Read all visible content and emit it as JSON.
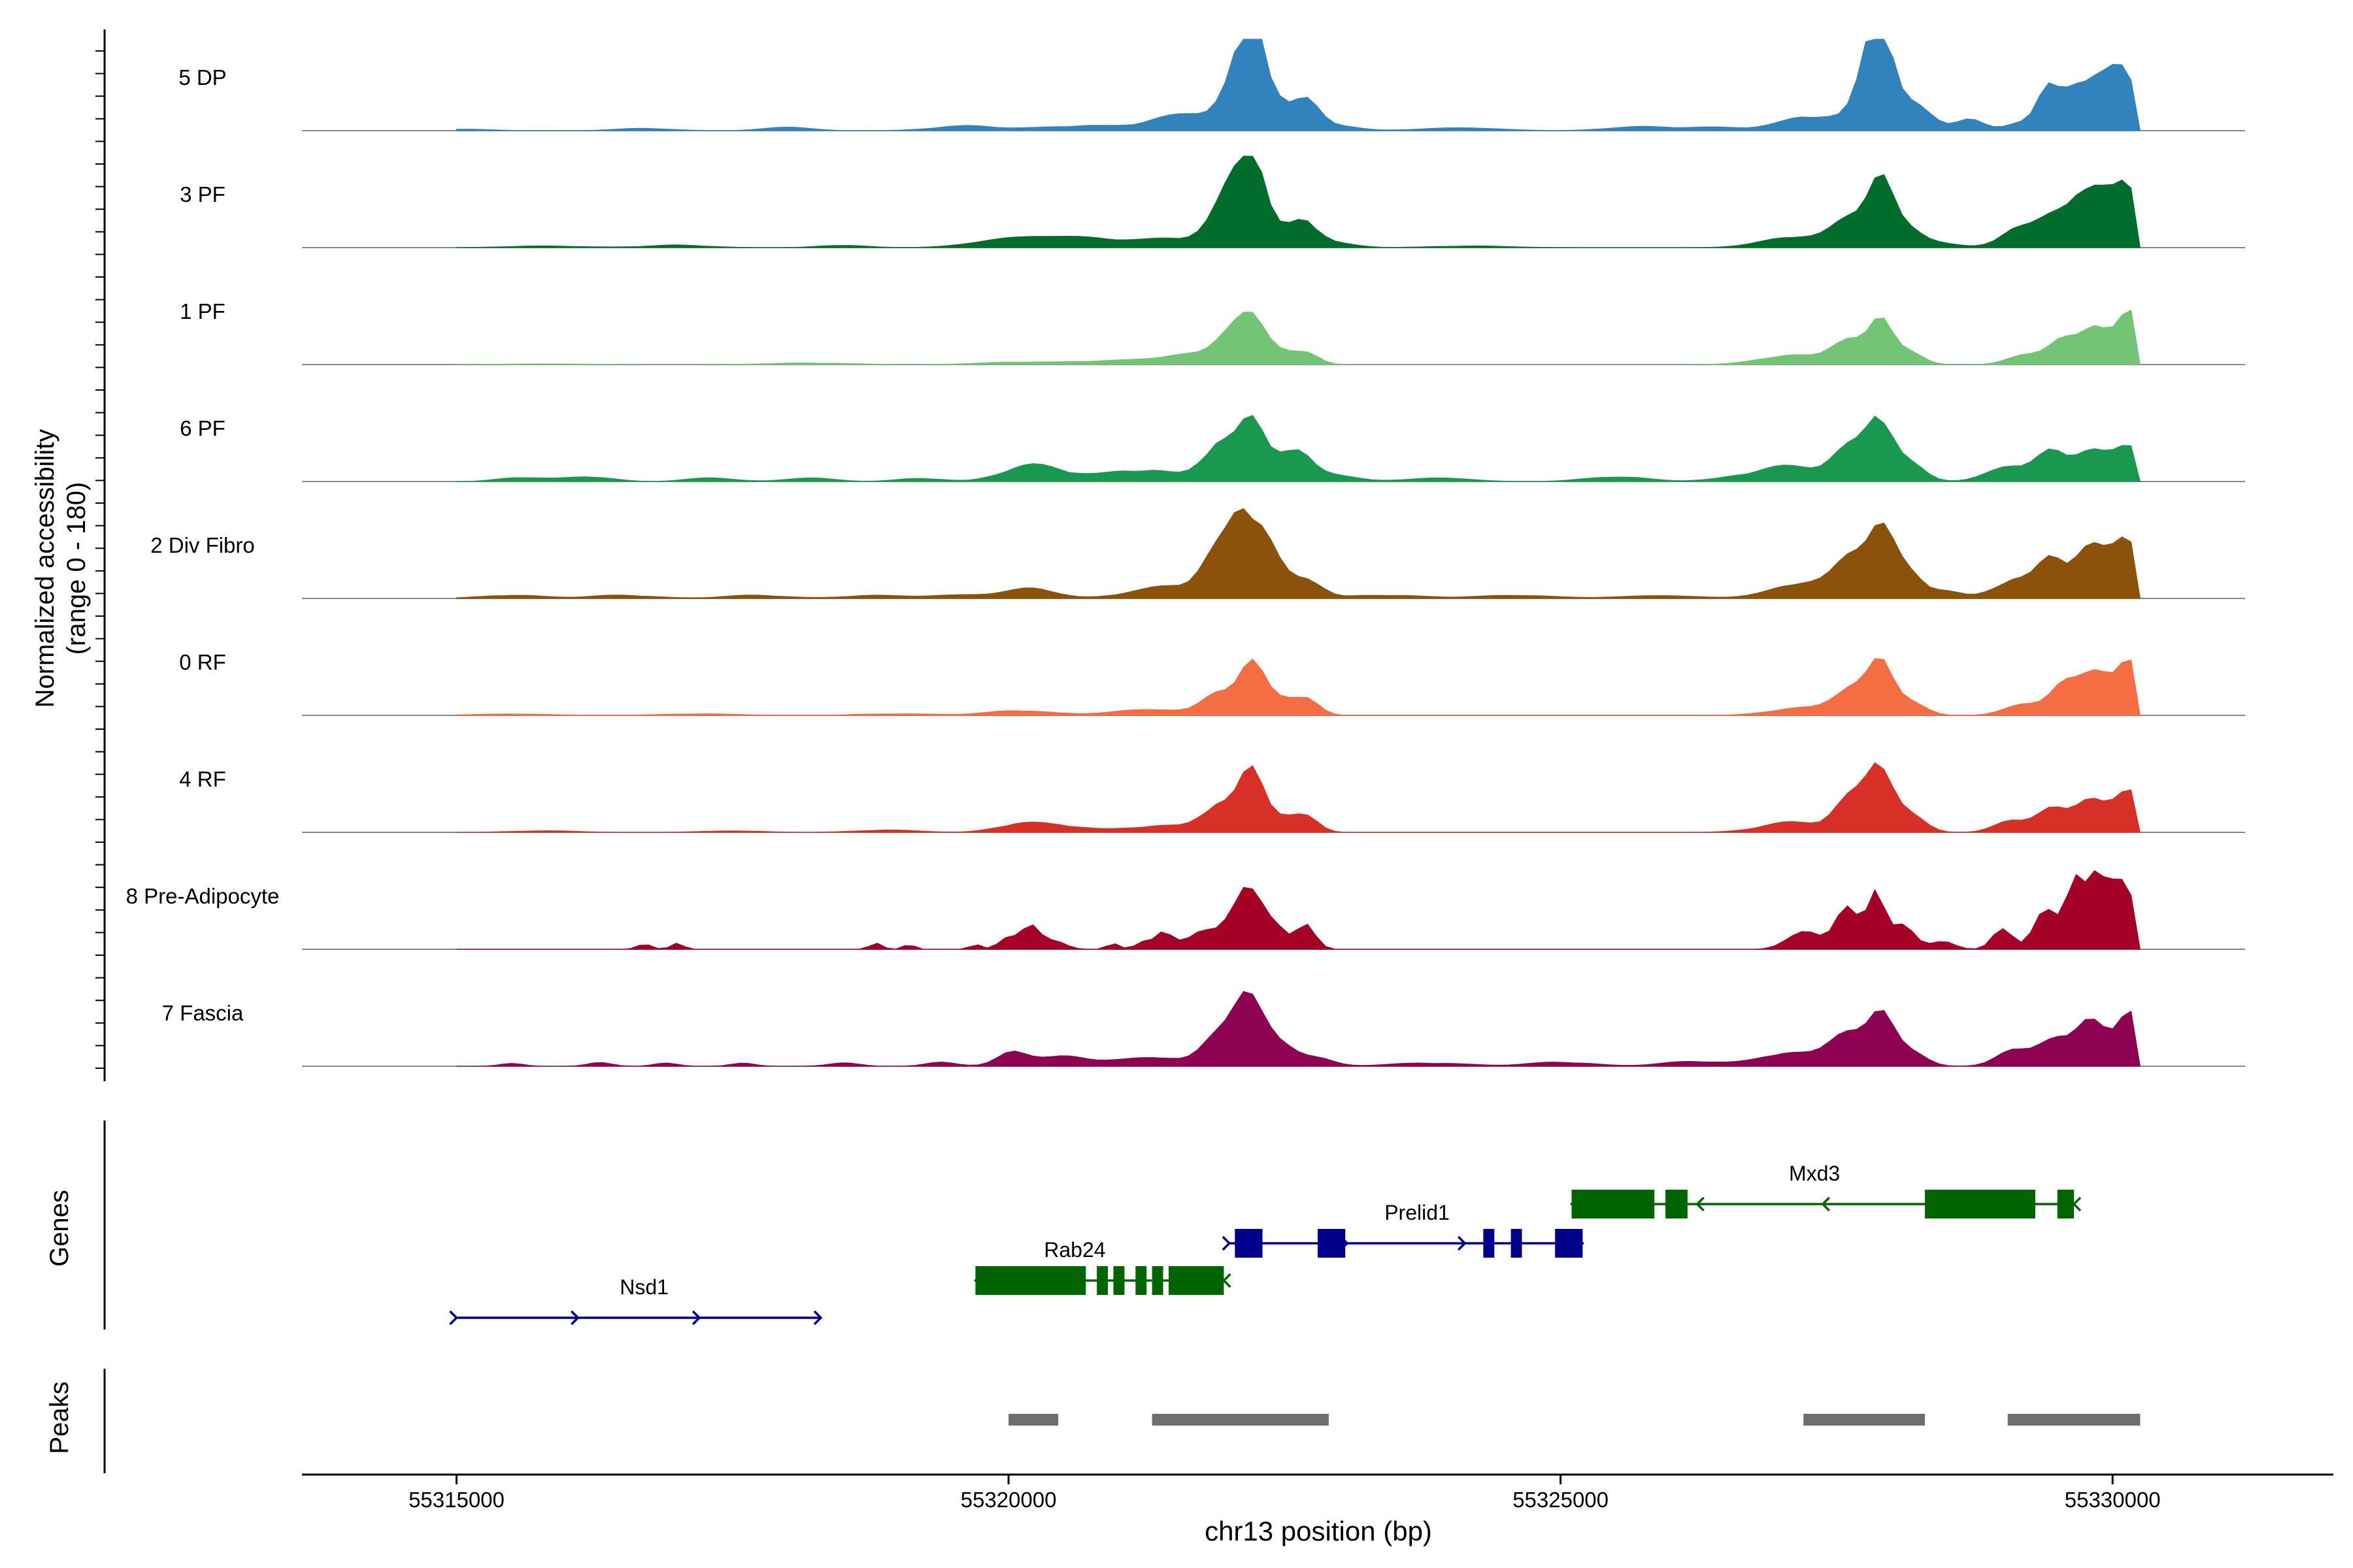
{
  "chart_data": {
    "type": "area",
    "title": "",
    "ylabel_line1": "Normalized accessibility",
    "ylabel_line2": "(range 0 - 180)",
    "xlabel": "chr13 position (bp)",
    "chromosome": "chr13",
    "yrange": [
      0,
      180
    ],
    "xlim": [
      55313600,
      55332000
    ],
    "x_ticks": [
      55315000,
      55320000,
      55325000,
      55330000
    ],
    "x_tick_labels": [
      "55315000",
      "55320000",
      "55325000",
      "55330000"
    ],
    "region": [
      55315000,
      55330250
    ],
    "tracks": [
      {
        "name": "5 DP",
        "color": "#3182bd",
        "peaks": [
          [
            55315000,
            0.02,
            400
          ],
          [
            55316700,
            0.03,
            350
          ],
          [
            55318000,
            0.05,
            300
          ],
          [
            55319600,
            0.06,
            400
          ],
          [
            55320700,
            0.06,
            600
          ],
          [
            55321400,
            0.08,
            300
          ],
          [
            55321900,
            0.22,
            450
          ],
          [
            55322130,
            0.62,
            200
          ],
          [
            55322230,
            0.66,
            150
          ],
          [
            55322400,
            0.28,
            200
          ],
          [
            55322700,
            0.3,
            160
          ],
          [
            55322900,
            0.08,
            300
          ],
          [
            55324100,
            0.04,
            500
          ],
          [
            55325700,
            0.05,
            400
          ],
          [
            55326400,
            0.04,
            400
          ],
          [
            55327300,
            0.18,
            400
          ],
          [
            55327800,
            0.62,
            180
          ],
          [
            55327900,
            0.92,
            140
          ],
          [
            55328100,
            0.28,
            250
          ],
          [
            55328300,
            0.1,
            200
          ],
          [
            55328700,
            0.14,
            180
          ],
          [
            55329200,
            0.12,
            200
          ],
          [
            55329400,
            0.36,
            120
          ],
          [
            55329600,
            0.42,
            200
          ],
          [
            55329850,
            0.56,
            200
          ],
          [
            55330100,
            0.72,
            180
          ]
        ]
      },
      {
        "name": "3 PF",
        "color": "#006d2c",
        "peaks": [
          [
            55315800,
            0.02,
            500
          ],
          [
            55317000,
            0.03,
            400
          ],
          [
            55318500,
            0.03,
            300
          ],
          [
            55320100,
            0.14,
            500
          ],
          [
            55320700,
            0.1,
            400
          ],
          [
            55321500,
            0.12,
            500
          ],
          [
            55321950,
            0.4,
            200
          ],
          [
            55322100,
            0.56,
            170
          ],
          [
            55322230,
            0.78,
            140
          ],
          [
            55322450,
            0.2,
            200
          ],
          [
            55322700,
            0.26,
            160
          ],
          [
            55322900,
            0.06,
            300
          ],
          [
            55324200,
            0.02,
            500
          ],
          [
            55327100,
            0.14,
            400
          ],
          [
            55327650,
            0.38,
            250
          ],
          [
            55327900,
            0.72,
            160
          ],
          [
            55328150,
            0.2,
            200
          ],
          [
            55328400,
            0.05,
            300
          ],
          [
            55329100,
            0.2,
            200
          ],
          [
            55329400,
            0.26,
            200
          ],
          [
            55329650,
            0.5,
            200
          ],
          [
            55329900,
            0.52,
            180
          ],
          [
            55330150,
            0.78,
            160
          ]
        ]
      },
      {
        "name": "1 PF",
        "color": "#74c476",
        "peaks": [
          [
            55315800,
            0.01,
            500
          ],
          [
            55318200,
            0.02,
            500
          ],
          [
            55320100,
            0.03,
            500
          ],
          [
            55321000,
            0.05,
            500
          ],
          [
            55321700,
            0.14,
            400
          ],
          [
            55322000,
            0.32,
            180
          ],
          [
            55322200,
            0.58,
            170
          ],
          [
            55322450,
            0.16,
            200
          ],
          [
            55322700,
            0.14,
            160
          ],
          [
            55327100,
            0.12,
            400
          ],
          [
            55327600,
            0.32,
            200
          ],
          [
            55327900,
            0.58,
            150
          ],
          [
            55328150,
            0.18,
            180
          ],
          [
            55329200,
            0.12,
            220
          ],
          [
            55329550,
            0.32,
            200
          ],
          [
            55329850,
            0.42,
            170
          ],
          [
            55330150,
            0.64,
            180
          ]
        ]
      },
      {
        "name": "6 PF",
        "color": "#1a9850",
        "peaks": [
          [
            55315600,
            0.05,
            300
          ],
          [
            55316200,
            0.06,
            300
          ],
          [
            55317300,
            0.05,
            300
          ],
          [
            55318200,
            0.05,
            300
          ],
          [
            55319200,
            0.04,
            300
          ],
          [
            55320100,
            0.14,
            300
          ],
          [
            55320400,
            0.11,
            300
          ],
          [
            55321200,
            0.14,
            500
          ],
          [
            55321900,
            0.44,
            200
          ],
          [
            55322200,
            0.68,
            170
          ],
          [
            55322450,
            0.26,
            200
          ],
          [
            55322650,
            0.22,
            160
          ],
          [
            55322900,
            0.1,
            300
          ],
          [
            55323900,
            0.05,
            400
          ],
          [
            55325500,
            0.06,
            400
          ],
          [
            55326700,
            0.05,
            400
          ],
          [
            55327100,
            0.16,
            400
          ],
          [
            55327650,
            0.4,
            250
          ],
          [
            55327900,
            0.66,
            150
          ],
          [
            55328150,
            0.22,
            200
          ],
          [
            55329100,
            0.2,
            300
          ],
          [
            55329450,
            0.34,
            180
          ],
          [
            55329800,
            0.42,
            200
          ],
          [
            55330150,
            0.48,
            200
          ]
        ]
      },
      {
        "name": "2 Div Fibro",
        "color": "#8c510a",
        "peaks": [
          [
            55315500,
            0.04,
            400
          ],
          [
            55316500,
            0.04,
            400
          ],
          [
            55317700,
            0.04,
            400
          ],
          [
            55318800,
            0.04,
            400
          ],
          [
            55319600,
            0.05,
            400
          ],
          [
            55320200,
            0.14,
            300
          ],
          [
            55321500,
            0.16,
            500
          ],
          [
            55321900,
            0.48,
            200
          ],
          [
            55322120,
            0.78,
            160
          ],
          [
            55322300,
            0.58,
            170
          ],
          [
            55322500,
            0.2,
            200
          ],
          [
            55322750,
            0.18,
            160
          ],
          [
            55323400,
            0.04,
            500
          ],
          [
            55324600,
            0.04,
            500
          ],
          [
            55325900,
            0.04,
            500
          ],
          [
            55327200,
            0.2,
            400
          ],
          [
            55327650,
            0.48,
            220
          ],
          [
            55327900,
            0.72,
            170
          ],
          [
            55328150,
            0.3,
            200
          ],
          [
            55328500,
            0.08,
            200
          ],
          [
            55329100,
            0.22,
            250
          ],
          [
            55329450,
            0.44,
            180
          ],
          [
            55329800,
            0.6,
            220
          ],
          [
            55330150,
            0.74,
            180
          ]
        ]
      },
      {
        "name": "0 RF",
        "color": "#f46d43",
        "peaks": [
          [
            55315500,
            0.02,
            500
          ],
          [
            55317200,
            0.02,
            500
          ],
          [
            55319000,
            0.02,
            500
          ],
          [
            55320100,
            0.06,
            400
          ],
          [
            55321300,
            0.08,
            500
          ],
          [
            55321900,
            0.3,
            200
          ],
          [
            55322200,
            0.68,
            160
          ],
          [
            55322450,
            0.2,
            200
          ],
          [
            55322700,
            0.2,
            160
          ],
          [
            55327200,
            0.1,
            400
          ],
          [
            55327650,
            0.36,
            220
          ],
          [
            55327900,
            0.66,
            150
          ],
          [
            55328150,
            0.2,
            200
          ],
          [
            55329200,
            0.14,
            250
          ],
          [
            55329550,
            0.36,
            180
          ],
          [
            55329850,
            0.5,
            200
          ],
          [
            55330150,
            0.62,
            180
          ]
        ]
      },
      {
        "name": "4 RF",
        "color": "#d73027",
        "peaks": [
          [
            55315800,
            0.02,
            400
          ],
          [
            55317500,
            0.02,
            400
          ],
          [
            55318900,
            0.03,
            400
          ],
          [
            55320100,
            0.1,
            300
          ],
          [
            55320500,
            0.07,
            300
          ],
          [
            55321400,
            0.08,
            500
          ],
          [
            55321900,
            0.32,
            200
          ],
          [
            55322200,
            0.72,
            160
          ],
          [
            55322450,
            0.18,
            200
          ],
          [
            55322700,
            0.18,
            160
          ],
          [
            55327100,
            0.12,
            400
          ],
          [
            55327650,
            0.42,
            220
          ],
          [
            55327900,
            0.74,
            150
          ],
          [
            55328150,
            0.22,
            200
          ],
          [
            55329100,
            0.16,
            220
          ],
          [
            55329450,
            0.3,
            180
          ],
          [
            55329800,
            0.46,
            200
          ],
          [
            55330150,
            0.58,
            180
          ]
        ]
      },
      {
        "name": "8 Pre-Adipocyte",
        "color": "#a50026",
        "peaks": [
          [
            55316700,
            0.07,
            90
          ],
          [
            55317000,
            0.07,
            80
          ],
          [
            55318800,
            0.08,
            80
          ],
          [
            55319100,
            0.07,
            70
          ],
          [
            55319700,
            0.07,
            70
          ],
          [
            55320000,
            0.16,
            120
          ],
          [
            55320200,
            0.3,
            110
          ],
          [
            55320400,
            0.12,
            150
          ],
          [
            55320950,
            0.08,
            80
          ],
          [
            55321200,
            0.08,
            80
          ],
          [
            55321400,
            0.2,
            120
          ],
          [
            55321750,
            0.22,
            200
          ],
          [
            55322050,
            0.34,
            150
          ],
          [
            55322200,
            0.68,
            130
          ],
          [
            55322400,
            0.28,
            150
          ],
          [
            55322700,
            0.3,
            120
          ],
          [
            55327200,
            0.24,
            200
          ],
          [
            55327600,
            0.52,
            150
          ],
          [
            55327850,
            0.7,
            110
          ],
          [
            55328100,
            0.28,
            150
          ],
          [
            55328450,
            0.1,
            150
          ],
          [
            55329000,
            0.28,
            120
          ],
          [
            55329400,
            0.46,
            150
          ],
          [
            55329650,
            0.88,
            110
          ],
          [
            55329850,
            0.82,
            120
          ],
          [
            55330050,
            0.74,
            120
          ],
          [
            55330200,
            0.48,
            110
          ]
        ]
      },
      {
        "name": "7 Fascia",
        "color": "#8e0152",
        "peaks": [
          [
            55315500,
            0.04,
            150
          ],
          [
            55316300,
            0.05,
            150
          ],
          [
            55316900,
            0.04,
            150
          ],
          [
            55317600,
            0.04,
            150
          ],
          [
            55318500,
            0.04,
            200
          ],
          [
            55319400,
            0.05,
            200
          ],
          [
            55320050,
            0.18,
            200
          ],
          [
            55320500,
            0.12,
            300
          ],
          [
            55321300,
            0.12,
            500
          ],
          [
            55321900,
            0.4,
            200
          ],
          [
            55322150,
            0.86,
            170
          ],
          [
            55322350,
            0.3,
            160
          ],
          [
            55322550,
            0.18,
            160
          ],
          [
            55322800,
            0.1,
            200
          ],
          [
            55323800,
            0.04,
            500
          ],
          [
            55325000,
            0.05,
            400
          ],
          [
            55326200,
            0.06,
            400
          ],
          [
            55327100,
            0.18,
            400
          ],
          [
            55327600,
            0.44,
            220
          ],
          [
            55327900,
            0.68,
            160
          ],
          [
            55328150,
            0.22,
            200
          ],
          [
            55329100,
            0.2,
            220
          ],
          [
            55329450,
            0.34,
            180
          ],
          [
            55329800,
            0.54,
            200
          ],
          [
            55330150,
            0.64,
            180
          ]
        ]
      }
    ],
    "genes_label": "Genes",
    "genes": [
      {
        "name": "Nsd1",
        "strand": "+",
        "row": 3,
        "color": "#00008b",
        "start": 55315000,
        "end": 55318300,
        "exons": [],
        "label_x": 55316700
      },
      {
        "name": "Rab24",
        "strand": "-",
        "row": 2,
        "color": "#006400",
        "start": 55319700,
        "end": 55321950,
        "exons": [
          [
            55319700,
            55320700
          ],
          [
            55320800,
            55320900
          ],
          [
            55320950,
            55321050
          ],
          [
            55321150,
            55321250
          ],
          [
            55321300,
            55321400
          ],
          [
            55321450,
            55321550
          ],
          [
            55321500,
            55321950
          ]
        ],
        "label_x": 55320600
      },
      {
        "name": "Prelid1",
        "strand": "+",
        "row": 1,
        "color": "#00008b",
        "start": 55322000,
        "end": 55325200,
        "exons": [
          [
            55322050,
            55322300
          ],
          [
            55322800,
            55323050
          ],
          [
            55324300,
            55324400
          ],
          [
            55324550,
            55324650
          ],
          [
            55324950,
            55325200
          ]
        ],
        "label_x": 55323700
      },
      {
        "name": "Mxd3",
        "strand": "-",
        "row": 0,
        "color": "#006400",
        "start": 55325100,
        "end": 55329650,
        "exons": [
          [
            55325100,
            55325850
          ],
          [
            55325950,
            55326150
          ],
          [
            55328300,
            55329300
          ],
          [
            55329500,
            55329650
          ]
        ],
        "label_x": 55327300
      }
    ],
    "peaks_label": "Peaks",
    "peak_regions": [
      [
        55320000,
        55320450
      ],
      [
        55321300,
        55322900
      ],
      [
        55327200,
        55328300
      ],
      [
        55329050,
        55330250
      ]
    ]
  }
}
